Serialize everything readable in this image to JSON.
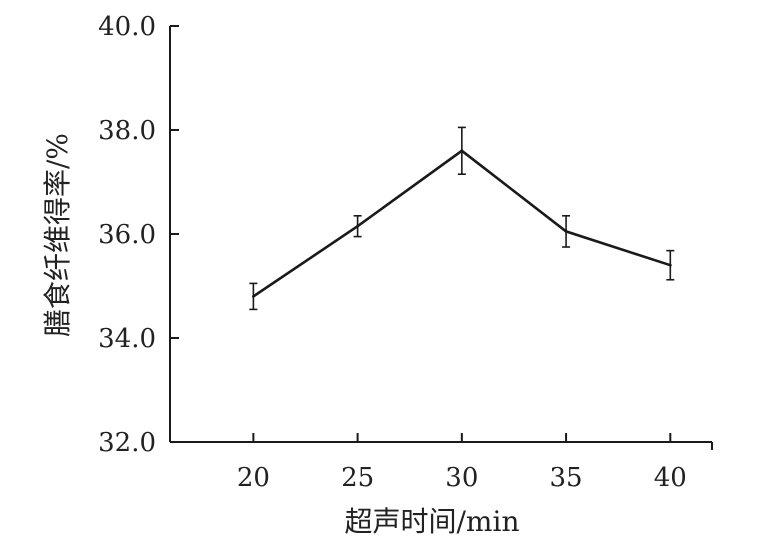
{
  "chart_data": {
    "type": "line",
    "xlabel": "超声时间/min",
    "ylabel": "膳食纤维得率/%",
    "x": [
      20,
      25,
      30,
      35,
      40
    ],
    "series": [
      {
        "values": [
          34.8,
          36.15,
          37.6,
          36.05,
          35.4
        ],
        "error": [
          0.25,
          0.2,
          0.45,
          0.3,
          0.28
        ]
      }
    ],
    "xticks": [
      "20",
      "25",
      "30",
      "35",
      "40"
    ],
    "yticks": [
      "32.0",
      "34.0",
      "36.0",
      "38.0",
      "40.0"
    ],
    "ylim": [
      32,
      40
    ],
    "xlim": [
      16,
      42
    ],
    "grid": false,
    "line_color": "#1a1a1a"
  }
}
